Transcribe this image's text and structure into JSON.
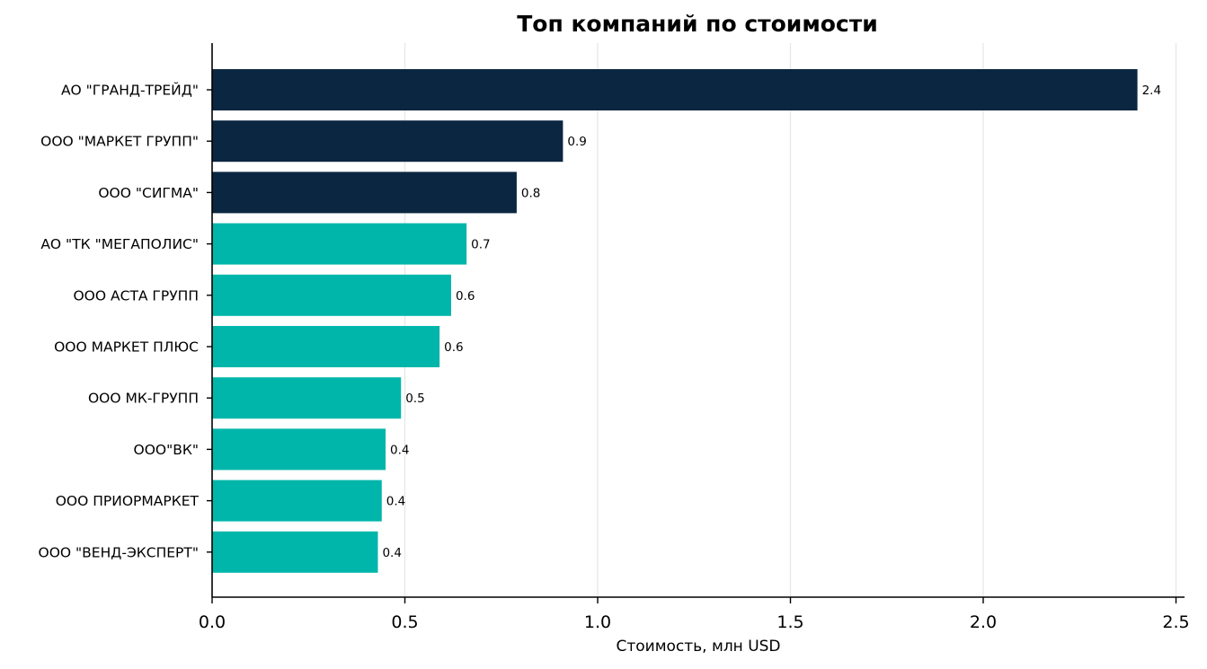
{
  "chart_data": {
    "type": "bar",
    "orientation": "horizontal",
    "title": "Топ компаний по стоимости",
    "xlabel": "Стоимость, млн USD",
    "ylabel": "",
    "xlim": [
      0,
      2.5
    ],
    "xticks": [
      0.0,
      0.5,
      1.0,
      1.5,
      2.0,
      2.5
    ],
    "xtick_labels": [
      "0.0",
      "0.5",
      "1.0",
      "1.5",
      "2.0",
      "2.5"
    ],
    "grid": "vertical",
    "categories": [
      "АО \"ГРАНД-ТРЕЙД\"",
      "ООО \"МАРКЕТ ГРУПП\"",
      "ООО \"СИГМА\"",
      "АО \"ТК \"МЕГАПОЛИС\"",
      "ООО АСТА ГРУПП",
      "ООО МАРКЕТ ПЛЮС",
      "ООО МК-ГРУПП",
      "ООО\"ВК\"",
      "ООО ПРИОРМАРКЕТ",
      "ООО \"ВЕНД-ЭКСПЕРТ\""
    ],
    "values": [
      2.4,
      0.91,
      0.79,
      0.66,
      0.62,
      0.59,
      0.49,
      0.45,
      0.44,
      0.43
    ],
    "value_labels": [
      "2.4",
      "0.9",
      "0.8",
      "0.7",
      "0.6",
      "0.6",
      "0.5",
      "0.4",
      "0.4",
      "0.4"
    ],
    "colors": [
      "#0b2640",
      "#0b2640",
      "#0b2640",
      "#00b6aa",
      "#00b6aa",
      "#00b6aa",
      "#00b6aa",
      "#00b6aa",
      "#00b6aa",
      "#00b6aa"
    ]
  }
}
